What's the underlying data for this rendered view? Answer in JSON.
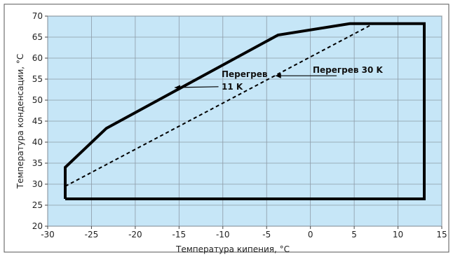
{
  "chart_data": {
    "type": "line",
    "xlabel": "Температура кипения, °C",
    "ylabel": "Температура конденсации, °C",
    "xlim": [
      -30,
      15
    ],
    "ylim": [
      20,
      70
    ],
    "x_ticks": [
      -30,
      -25,
      -20,
      -15,
      -10,
      -5,
      0,
      5,
      10,
      15
    ],
    "y_ticks": [
      20,
      25,
      30,
      35,
      40,
      45,
      50,
      55,
      60,
      65,
      70
    ],
    "x_tick_labels": [
      "-30",
      "-25",
      "-20",
      "-15",
      "-10",
      "-5",
      "0",
      "5",
      "10",
      "15"
    ],
    "y_tick_labels": [
      "20",
      "25",
      "30",
      "35",
      "40",
      "45",
      "50",
      "55",
      "60",
      "65",
      "70"
    ],
    "grid": true,
    "legend": "none",
    "colors": {
      "plot_background": "#c6e6f7",
      "grid": "#8c9aa6",
      "envelope": "#000000",
      "dashed_line": "#000000"
    },
    "series": [
      {
        "style": "solid",
        "points": [
          {
            "x": -28,
            "y": 26.5
          },
          {
            "x": -28,
            "y": 34
          },
          {
            "x": -23.3,
            "y": 43.3
          },
          {
            "x": -3.7,
            "y": 65.5
          },
          {
            "x": 4.5,
            "y": 68.2
          },
          {
            "x": 13,
            "y": 68.2
          },
          {
            "x": 13,
            "y": 26.5
          },
          {
            "x": -28,
            "y": 26.5
          }
        ]
      },
      {
        "style": "dashed",
        "points": [
          {
            "x": -28,
            "y": 26.5
          },
          {
            "x": -28,
            "y": 29.5
          },
          {
            "x": 7.2,
            "y": 68.2
          }
        ]
      }
    ],
    "annotations": [
      {
        "text_lines": [
          "Перегрев",
          "11 K"
        ],
        "arrow_from": {
          "x": -10.5,
          "y": 53.2
        },
        "arrow_to": {
          "x": -15.5,
          "y": 53.0
        }
      },
      {
        "text_lines": [
          "Перегрев 30 K"
        ],
        "arrow_from": {
          "x": 3,
          "y": 55.8
        },
        "arrow_to": {
          "x": -4,
          "y": 55.8
        }
      }
    ]
  }
}
